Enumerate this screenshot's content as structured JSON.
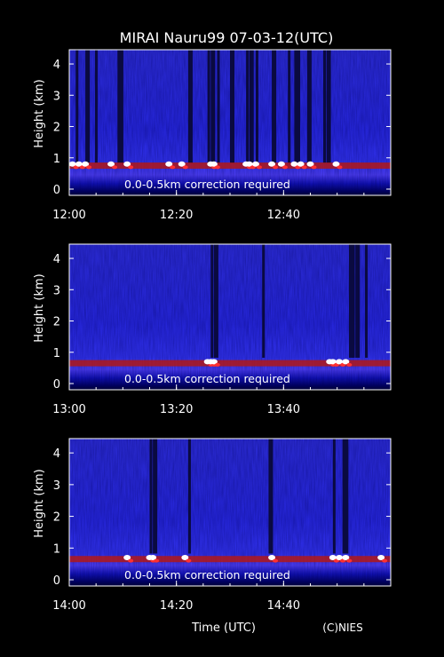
{
  "title": "MIRAI Nauru99 07-03-12(UTC)",
  "xlabel": "Time (UTC)",
  "credit": "(C)NIES",
  "colors": {
    "background": "#000000",
    "axis": "#ffffff",
    "text": "#ffffff"
  },
  "chart_data": [
    {
      "type": "heatmap",
      "ylabel": "Height (km)",
      "ylim": [
        0,
        4.2
      ],
      "yticks": [
        "0",
        "1",
        "2",
        "3",
        "4"
      ],
      "xlim": [
        "12:00",
        "13:00"
      ],
      "xticks": [
        "12:00",
        "12:20",
        "12:40"
      ],
      "annotation": "0.0-0.5km correction required",
      "cloud_base_km": 0.7
    },
    {
      "type": "heatmap",
      "ylabel": "Height (km)",
      "ylim": [
        0,
        4.2
      ],
      "yticks": [
        "0",
        "1",
        "2",
        "3",
        "4"
      ],
      "xlim": [
        "13:00",
        "14:00"
      ],
      "xticks": [
        "13:00",
        "13:20",
        "13:40"
      ],
      "annotation": "0.0-0.5km correction required",
      "cloud_base_km": 0.6
    },
    {
      "type": "heatmap",
      "ylabel": "Height (km)",
      "ylim": [
        0,
        4.2
      ],
      "yticks": [
        "0",
        "1",
        "2",
        "3",
        "4"
      ],
      "xlim": [
        "14:00",
        "15:00"
      ],
      "xticks": [
        "14:00",
        "14:20",
        "14:40"
      ],
      "annotation": "0.0-0.5km correction required",
      "cloud_base_km": 0.6
    }
  ]
}
